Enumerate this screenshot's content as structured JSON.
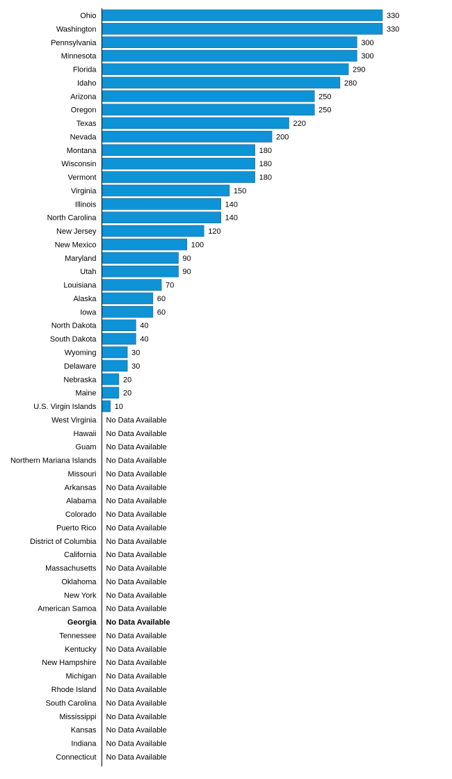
{
  "chart_data": {
    "type": "bar",
    "orientation": "horizontal",
    "bar_color": "#0d93d6",
    "axis_color": "#000000",
    "grid": false,
    "xlim": [
      0,
      330
    ],
    "no_data_text": "No Data Available",
    "highlighted_category": "Georgia",
    "categories": [
      "Ohio",
      "Washington",
      "Pennsylvania",
      "Minnesota",
      "Florida",
      "Idaho",
      "Arizona",
      "Oregon",
      "Texas",
      "Nevada",
      "Montana",
      "Wisconsin",
      "Vermont",
      "Virginia",
      "Illinois",
      "North Carolina",
      "New Jersey",
      "New Mexico",
      "Maryland",
      "Utah",
      "Louisiana",
      "Alaska",
      "Iowa",
      "North Dakota",
      "South Dakota",
      "Wyoming",
      "Delaware",
      "Nebraska",
      "Maine",
      "U.S. Virgin Islands",
      "West Virginia",
      "Hawaii",
      "Guam",
      "Northern Mariana Islands",
      "Missouri",
      "Arkansas",
      "Alabama",
      "Colorado",
      "Puerto Rico",
      "District of Columbia",
      "California",
      "Massachusetts",
      "Oklahoma",
      "New York",
      "American Samoa",
      "Georgia",
      "Tennessee",
      "Kentucky",
      "New Hampshire",
      "Michigan",
      "Rhode Island",
      "South Carolina",
      "Mississippi",
      "Kansas",
      "Indiana",
      "Connecticut"
    ],
    "values": [
      330,
      330,
      300,
      300,
      290,
      280,
      250,
      250,
      220,
      200,
      180,
      180,
      180,
      150,
      140,
      140,
      120,
      100,
      90,
      90,
      70,
      60,
      60,
      40,
      40,
      30,
      30,
      20,
      20,
      10,
      null,
      null,
      null,
      null,
      null,
      null,
      null,
      null,
      null,
      null,
      null,
      null,
      null,
      null,
      null,
      null,
      null,
      null,
      null,
      null,
      null,
      null,
      null,
      null,
      null,
      null
    ]
  }
}
